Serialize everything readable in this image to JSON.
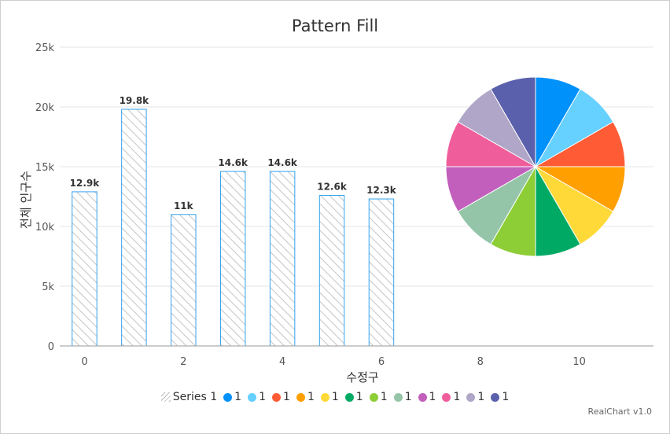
{
  "chart_data": [
    {
      "type": "bar",
      "title": "Pattern Fill",
      "ylabel": "전체 인구수",
      "xlabel": "수정구",
      "xlim": [
        -0.5,
        11.5
      ],
      "ylim": [
        0,
        25000
      ],
      "x_ticks": [
        0,
        2,
        4,
        6,
        8,
        10
      ],
      "y_ticks": [
        {
          "value": 0,
          "label": "0"
        },
        {
          "value": 5000,
          "label": "5k"
        },
        {
          "value": 10000,
          "label": "10k"
        },
        {
          "value": 15000,
          "label": "15k"
        },
        {
          "value": 20000,
          "label": "20k"
        },
        {
          "value": 25000,
          "label": "25k"
        }
      ],
      "grid": true,
      "series": [
        {
          "name": "Series 1",
          "x": [
            0,
            1,
            2,
            3,
            4,
            5,
            6
          ],
          "values": [
            12900,
            19800,
            11000,
            14600,
            14600,
            12600,
            12300
          ],
          "labels": [
            "12.9k",
            "19.8k",
            "11k",
            "14.6k",
            "14.6k",
            "12.6k",
            "12.3k"
          ]
        }
      ]
    },
    {
      "type": "pie",
      "values": [
        1,
        1,
        1,
        1,
        1,
        1,
        1,
        1,
        1,
        1,
        1,
        1
      ],
      "labels": [
        "1",
        "1",
        "1",
        "1",
        "1",
        "1",
        "1",
        "1",
        "1",
        "1",
        "1",
        "1"
      ],
      "colors": [
        "#0091fa",
        "#66d0ff",
        "#ff5c35",
        "#ff9f00",
        "#ffd938",
        "#00aa65",
        "#8dcd36",
        "#94c5a8",
        "#c25fbc",
        "#f05d9b",
        "#afa6c8",
        "#5a60ab"
      ]
    }
  ],
  "legend": {
    "placement": "bottom",
    "items": [
      {
        "label": "Series 1",
        "color": "#bbbbbb",
        "marker": "pattern"
      },
      {
        "label": "1",
        "color": "#0091fa",
        "marker": "dot"
      },
      {
        "label": "1",
        "color": "#66d0ff",
        "marker": "dot"
      },
      {
        "label": "1",
        "color": "#ff5c35",
        "marker": "dot"
      },
      {
        "label": "1",
        "color": "#ff9f00",
        "marker": "dot"
      },
      {
        "label": "1",
        "color": "#ffd938",
        "marker": "dot"
      },
      {
        "label": "1",
        "color": "#00aa65",
        "marker": "dot"
      },
      {
        "label": "1",
        "color": "#8dcd36",
        "marker": "dot"
      },
      {
        "label": "1",
        "color": "#94c5a8",
        "marker": "dot"
      },
      {
        "label": "1",
        "color": "#c25fbc",
        "marker": "dot"
      },
      {
        "label": "1",
        "color": "#f05d9b",
        "marker": "dot"
      },
      {
        "label": "1",
        "color": "#afa6c8",
        "marker": "dot"
      },
      {
        "label": "1",
        "color": "#5a60ab",
        "marker": "dot"
      }
    ]
  },
  "credits": "RealChart v1.0",
  "colors": {
    "bar_stroke": "#36a2f0",
    "hatch": "#bbbbbb",
    "grid": "#e6e6e6",
    "axis": "#999999"
  }
}
